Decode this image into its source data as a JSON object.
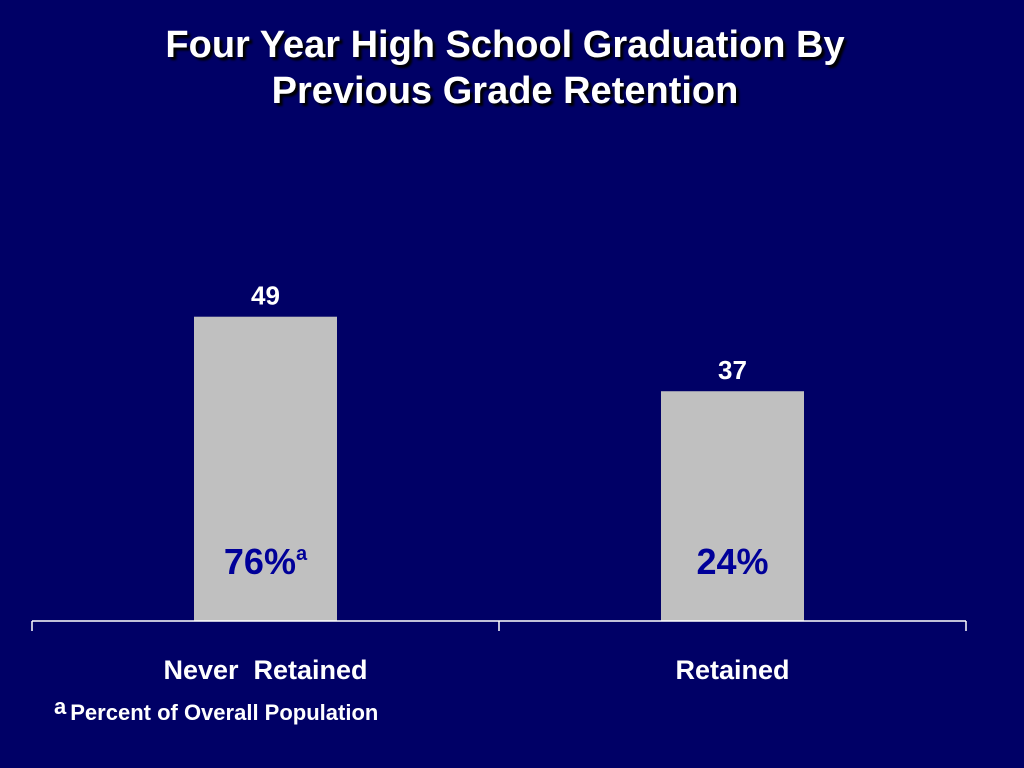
{
  "slide": {
    "title_line1": "Four Year High School Graduation By",
    "title_line2": "Previous Grade Retention",
    "footnote_marker": "a",
    "footnote_text": "Percent of Overall Population"
  },
  "colors": {
    "background": "#000066",
    "bar": "#C0C0C0",
    "inner_label": "#000099",
    "text": "#FFFFFF",
    "axis": "#FFFFFF"
  },
  "chart_data": {
    "type": "bar",
    "title": "Four Year High School Graduation By Previous Grade Retention",
    "xlabel": "",
    "ylabel": "",
    "categories": [
      "Never  Retained",
      "Retained"
    ],
    "values": [
      49,
      37
    ],
    "data_labels": [
      "49",
      "37"
    ],
    "inner_labels": [
      {
        "text": "76%",
        "sup": "a"
      },
      {
        "text": "24%",
        "sup": ""
      }
    ],
    "ylim": [
      0,
      100
    ],
    "grid": false,
    "legend": "none"
  }
}
